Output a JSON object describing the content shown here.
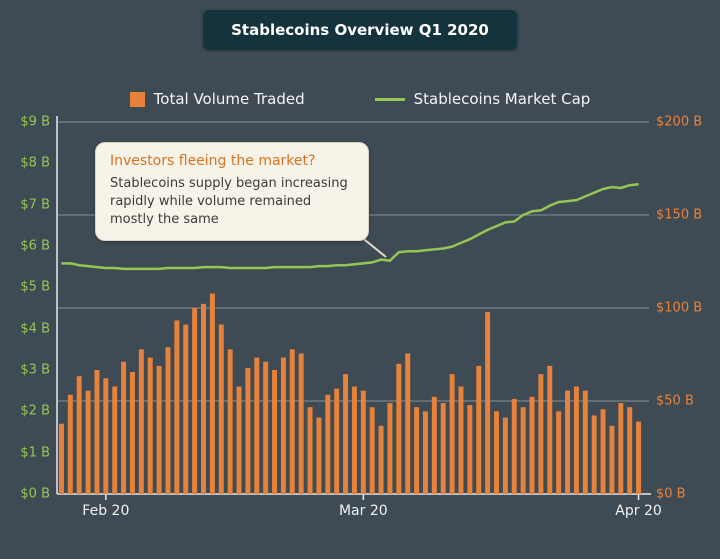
{
  "title": "Stablecoins Overview Q1 2020",
  "legend": [
    {
      "label": "Total Volume Traded",
      "swatch": "bar",
      "color": "#e8823b"
    },
    {
      "label": "Stablecoins Market Cap",
      "swatch": "line",
      "color": "#97c554"
    }
  ],
  "annotation": {
    "title": "Investors fleeing the market?",
    "body": "Stablecoins supply began increasing rapidly while volume remained mostly the same"
  },
  "chart_data": {
    "type": "bar+line",
    "title": "Stablecoins Overview Q1 2020",
    "x_axis": {
      "tick_labels": [
        "Feb 20",
        "Mar 20",
        "Apr 20"
      ],
      "tick_indices": [
        5,
        34,
        65
      ]
    },
    "left_axis": {
      "ticks": [
        "$0 B",
        "$1 B",
        "$2 B",
        "$3 B",
        "$4 B",
        "$5 B",
        "$6 B",
        "$7 B",
        "$8 B",
        "$9 B"
      ],
      "values": [
        0,
        1,
        2,
        3,
        4,
        5,
        6,
        7,
        8,
        9
      ],
      "range": [
        0,
        9
      ],
      "unit": "$B",
      "color": "#97c554"
    },
    "right_axis": {
      "ticks": [
        "$0 B",
        "$50 B",
        "$100 B",
        "$150 B",
        "$200 B"
      ],
      "values": [
        0,
        50,
        100,
        150,
        200
      ],
      "range": [
        0,
        200
      ],
      "unit": "$B",
      "color": "#e8823b"
    },
    "grid": true,
    "legend_position": "top",
    "series": [
      {
        "name": "Total Volume Traded",
        "type": "bar",
        "axis": "left",
        "unit": "$B",
        "color": "#e8823b",
        "values": [
          1.7,
          2.4,
          2.85,
          2.5,
          3.0,
          2.8,
          2.6,
          3.2,
          2.95,
          3.5,
          3.3,
          3.1,
          3.55,
          4.2,
          4.1,
          4.5,
          4.6,
          4.85,
          4.1,
          3.5,
          2.6,
          3.05,
          3.3,
          3.2,
          3.0,
          3.3,
          3.5,
          3.4,
          2.1,
          1.85,
          2.4,
          2.55,
          2.9,
          2.6,
          2.5,
          2.1,
          1.65,
          2.2,
          3.15,
          3.4,
          2.1,
          2.0,
          2.35,
          2.2,
          2.9,
          2.6,
          2.15,
          3.1,
          4.4,
          2.0,
          1.85,
          2.3,
          2.1,
          2.35,
          2.9,
          3.1,
          2.0,
          2.5,
          2.6,
          2.5,
          1.9,
          2.05,
          1.65,
          2.2,
          2.1,
          1.75
        ]
      },
      {
        "name": "Stablecoins Market Cap",
        "type": "line",
        "axis": "right",
        "unit": "$B",
        "color": "#97c554",
        "values": [
          124,
          124,
          123,
          122.5,
          122,
          121.5,
          121.5,
          121,
          121,
          121,
          121,
          121,
          121.5,
          121.5,
          121.5,
          121.5,
          122,
          122,
          122,
          121.5,
          121.5,
          121.5,
          121.5,
          121.5,
          122,
          122,
          122,
          122,
          122,
          122.5,
          122.5,
          123,
          123,
          123.5,
          124,
          124.5,
          126,
          125.5,
          130,
          130.5,
          130.5,
          131,
          131.5,
          132,
          133,
          135,
          137,
          139.5,
          142,
          144,
          146,
          146.5,
          150,
          152,
          152.5,
          155,
          157,
          157.5,
          158,
          160,
          162,
          164,
          165,
          164.5,
          166,
          166.5
        ]
      }
    ]
  },
  "colors": {
    "background": "#3e4b54",
    "title_banner": "#14333c",
    "bar": "#e8823b",
    "line": "#97c554",
    "left_axis_text": "#97c554",
    "right_axis_text": "#e8823b",
    "x_axis_text": "#f2f2f2",
    "annotation_bg": "#f7f3e8",
    "annotation_title": "#d9731f"
  }
}
